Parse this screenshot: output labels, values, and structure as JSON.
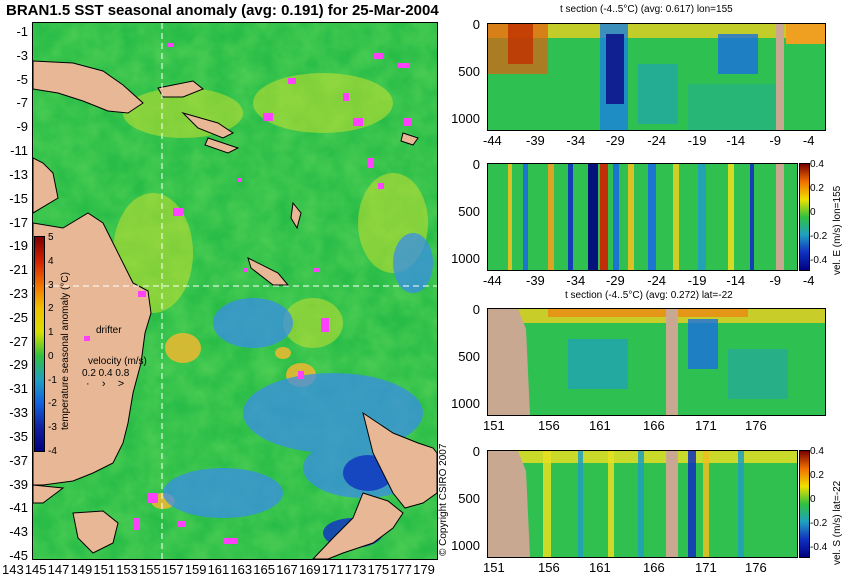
{
  "title": "BRAN1.5 SST seasonal anomaly (avg: 0.191) for 25-Mar-2004",
  "map": {
    "lat_ticks": [
      "-1",
      "-3",
      "-5",
      "-7",
      "-9",
      "-11",
      "-13",
      "-15",
      "-17",
      "-19",
      "-21",
      "-23",
      "-25",
      "-27",
      "-29",
      "-31",
      "-33",
      "-35",
      "-37",
      "-39",
      "-41",
      "-43",
      "-45"
    ],
    "lon_ticks": [
      "143",
      "145",
      "147",
      "149",
      "151",
      "153",
      "155",
      "157",
      "159",
      "161",
      "163",
      "165",
      "167",
      "169",
      "171",
      "173",
      "175",
      "177",
      "179"
    ],
    "colorbar_label": "temperature seasonal anomaly (°C)",
    "colorbar_ticks": [
      "5",
      "4",
      "3",
      "2",
      "1",
      "0",
      "-1",
      "-2",
      "-3",
      "-4"
    ],
    "drifter_label": "drifter",
    "velocity_label": "velocity (m/s)",
    "velocity_values": "0.2 0.4 0.8",
    "copyright": "© Copyright CSIRO 2007"
  },
  "sections": [
    {
      "title": "t section (-4..5°C) (avg: 0.617) lon=155",
      "y_ticks": [
        "0",
        "500",
        "1000"
      ],
      "x_ticks": [
        "-44",
        "-39",
        "-34",
        "-29",
        "-24",
        "-19",
        "-14",
        "-9",
        "-4"
      ]
    },
    {
      "title": "",
      "y_ticks": [
        "0",
        "500",
        "1000"
      ],
      "x_ticks": [
        "-44",
        "-39",
        "-34",
        "-29",
        "-24",
        "-19",
        "-14",
        "-9",
        "-4"
      ],
      "cbar_label": "vel. E (m/s) lon=155",
      "cbar_ticks": [
        "0.4",
        "0.2",
        "0",
        "-0.2",
        "-0.4"
      ]
    },
    {
      "title": "t section (-4..5°C) (avg: 0.272) lat=-22",
      "y_ticks": [
        "0",
        "500",
        "1000"
      ],
      "x_ticks": [
        "151",
        "156",
        "161",
        "166",
        "171",
        "176"
      ]
    },
    {
      "title": "",
      "y_ticks": [
        "0",
        "500",
        "1000"
      ],
      "x_ticks": [
        "151",
        "156",
        "161",
        "166",
        "171",
        "176"
      ],
      "cbar_label": "vel. S (m/s) lat=-22",
      "cbar_ticks": [
        "0.4",
        "0.2",
        "0",
        "-0.2",
        "-0.4"
      ]
    }
  ],
  "colors": {
    "land": "#d9a98a",
    "ocean_anom": "#22c44a",
    "cold": "#1a6fe0",
    "warm": "#f0c020",
    "drifter": "#ff40ff"
  }
}
